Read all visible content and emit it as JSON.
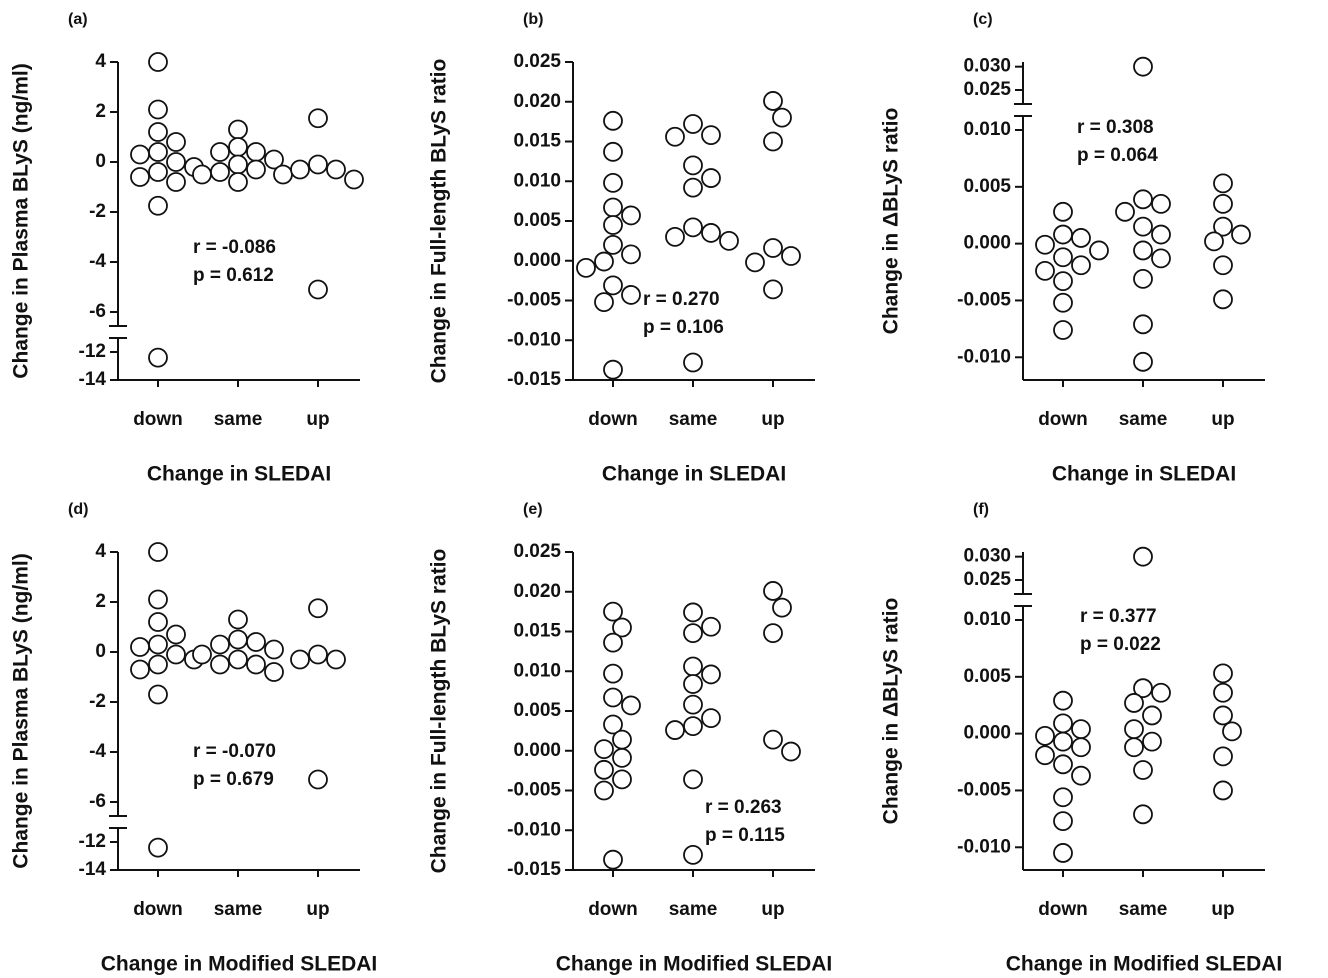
{
  "chart_data": [
    {
      "type": "scatter",
      "panel_label": "(a)",
      "x_label": "Change in SLEDAI",
      "y_label": "Change in Plasma BLyS (ng/ml)",
      "categories": [
        "down",
        "same",
        "up"
      ],
      "values": [
        [
          4.0,
          2.1,
          1.2,
          0.8,
          0.4,
          0.3,
          0.0,
          -0.2,
          -0.4,
          -0.6,
          -0.8,
          -1.75,
          -12.4
        ],
        [
          1.3,
          0.6,
          0.4,
          0.4,
          0.1,
          -0.1,
          -0.3,
          -0.4,
          -0.5,
          -0.5,
          -0.8
        ],
        [
          1.75,
          -0.1,
          -0.3,
          -0.3,
          -0.7,
          -5.1
        ]
      ],
      "ylim": [
        -14,
        4
      ],
      "yticks": [
        4,
        2,
        0,
        -2,
        -4,
        -6,
        -12,
        -14
      ],
      "ybreak": [
        -12,
        -6
      ],
      "annotations": [
        "r = -0.086",
        "p = 0.612"
      ],
      "marker_color": "#ffffff"
    },
    {
      "type": "scatter",
      "panel_label": "(b)",
      "x_label": "Change in SLEDAI",
      "y_label": "Change in Full-length BLyS ratio",
      "categories": [
        "down",
        "same",
        "up"
      ],
      "values": [
        [
          0.0176,
          0.0137,
          0.0098,
          0.0067,
          0.0057,
          0.0045,
          0.002,
          0.0008,
          -0.0001,
          -0.0009,
          -0.0031,
          -0.0043,
          -0.0052,
          -0.0137
        ],
        [
          0.0172,
          0.0158,
          0.0156,
          0.012,
          0.0104,
          0.0092,
          0.0042,
          0.0035,
          0.003,
          0.0025,
          -0.0128
        ],
        [
          0.0201,
          0.018,
          0.015,
          0.0016,
          0.0006,
          -0.0002,
          -0.0036
        ]
      ],
      "ylim": [
        -0.015,
        0.025
      ],
      "yticks": [
        0.025,
        {
          "value": 0.02,
          "label": "0.020"
        },
        0.015,
        {
          "value": 0.01,
          "label": "0.010"
        },
        0.005,
        {
          "value": 0,
          "label": "0.000"
        },
        -0.005,
        {
          "value": -0.01,
          "label": "-0.010"
        },
        -0.015
      ],
      "annotations": [
        "r = 0.270",
        "p = 0.106"
      ],
      "marker_color": "#ffffff"
    },
    {
      "type": "scatter",
      "panel_label": "(c)",
      "x_label": "Change in SLEDAI",
      "y_label": "Change in ΔBLyS ratio",
      "categories": [
        "down",
        "same",
        "up"
      ],
      "values": [
        [
          0.0028,
          0.0008,
          0.0005,
          -0.0001,
          -0.0006,
          -0.0012,
          -0.0019,
          -0.0024,
          -0.0033,
          -0.0052,
          -0.0076
        ],
        [
          0.03,
          0.0039,
          0.0035,
          0.0028,
          0.0015,
          0.0008,
          -0.0006,
          -0.0013,
          -0.0031,
          -0.0071,
          -0.0104
        ],
        [
          0.0053,
          0.0035,
          0.0015,
          0.0008,
          0.0002,
          -0.0019,
          -0.0049
        ]
      ],
      "ylim": [
        -0.012,
        0.031
      ],
      "yticks": [
        {
          "value": 0.03,
          "label": "0.030"
        },
        0.025,
        {
          "value": 0.01,
          "label": "0.010"
        },
        0.005,
        {
          "value": 0,
          "label": "0.000"
        },
        -0.005,
        {
          "value": -0.01,
          "label": "-0.010"
        }
      ],
      "ybreak": [
        0.01,
        0.025
      ],
      "annotations": [
        "r = 0.308",
        "p = 0.064"
      ],
      "marker_color": "#ffffff"
    },
    {
      "type": "scatter",
      "panel_label": "(d)",
      "x_label": "Change in Modified SLEDAI",
      "y_label": "Change in Plasma BLyS (ng/ml)",
      "categories": [
        "down",
        "same",
        "up"
      ],
      "values": [
        [
          4.0,
          2.1,
          1.2,
          0.7,
          0.3,
          0.2,
          -0.1,
          -0.3,
          -0.5,
          -0.7,
          -1.7,
          -12.4
        ],
        [
          1.3,
          0.5,
          0.4,
          0.3,
          0.1,
          -0.1,
          -0.3,
          -0.5,
          -0.5,
          -0.8
        ],
        [
          1.75,
          -0.1,
          -0.3,
          -0.3,
          -5.1
        ]
      ],
      "ylim": [
        -14,
        4
      ],
      "yticks": [
        4,
        2,
        0,
        -2,
        -4,
        -6,
        -12,
        -14
      ],
      "ybreak": [
        -12,
        -6
      ],
      "annotations": [
        "r = -0.070",
        "p = 0.679"
      ],
      "marker_color": "#ffffff"
    },
    {
      "type": "scatter",
      "panel_label": "(e)",
      "x_label": "Change in Modified SLEDAI",
      "y_label": "Change in Full-length BLyS ratio",
      "categories": [
        "down",
        "same",
        "up"
      ],
      "values": [
        [
          0.0175,
          0.0155,
          0.0136,
          0.0097,
          0.0067,
          0.0057,
          0.0033,
          0.0014,
          0.0002,
          -0.0009,
          -0.0024,
          -0.0036,
          -0.005,
          -0.0137
        ],
        [
          0.0174,
          0.0156,
          0.0148,
          0.0106,
          0.0096,
          0.0084,
          0.0058,
          0.0041,
          0.0031,
          0.0026,
          -0.0036,
          -0.0131
        ],
        [
          0.0201,
          0.018,
          0.0148,
          0.0014,
          -0.0001
        ]
      ],
      "ylim": [
        -0.015,
        0.025
      ],
      "yticks": [
        0.025,
        {
          "value": 0.02,
          "label": "0.020"
        },
        0.015,
        {
          "value": 0.01,
          "label": "0.010"
        },
        0.005,
        {
          "value": 0,
          "label": "0.000"
        },
        -0.005,
        {
          "value": -0.01,
          "label": "-0.010"
        },
        -0.015
      ],
      "annotations": [
        "r = 0.263",
        "p = 0.115"
      ],
      "marker_color": "#ffffff"
    },
    {
      "type": "scatter",
      "panel_label": "(f)",
      "x_label": "Change in Modified SLEDAI",
      "y_label": "Change in ΔBLyS ratio",
      "categories": [
        "down",
        "same",
        "up"
      ],
      "values": [
        [
          0.0029,
          0.0009,
          0.0004,
          -0.0002,
          -0.0007,
          -0.0012,
          -0.0019,
          -0.0027,
          -0.0037,
          -0.0056,
          -0.0077,
          -0.0105
        ],
        [
          0.03,
          0.004,
          0.0036,
          0.0027,
          0.0016,
          0.0004,
          -0.0007,
          -0.0012,
          -0.0032,
          -0.0071
        ],
        [
          0.0053,
          0.0036,
          0.0016,
          0.0002,
          -0.002,
          -0.005
        ]
      ],
      "ylim": [
        -0.012,
        0.031
      ],
      "yticks": [
        {
          "value": 0.03,
          "label": "0.030"
        },
        0.025,
        {
          "value": 0.01,
          "label": "0.010"
        },
        0.005,
        {
          "value": 0,
          "label": "0.000"
        },
        -0.005,
        {
          "value": -0.01,
          "label": "-0.010"
        }
      ],
      "ybreak": [
        0.01,
        0.025
      ],
      "annotations": [
        "r = 0.377",
        "p = 0.022"
      ],
      "marker_color": "#ffffff"
    }
  ]
}
